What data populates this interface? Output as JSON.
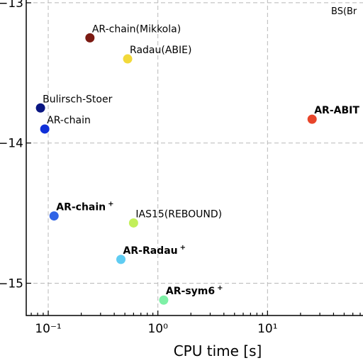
{
  "chart_data": {
    "type": "scatter",
    "title": "",
    "xlabel": "CPU time [s]",
    "ylabel": "",
    "x_scale": "log",
    "y_scale": "log",
    "xlim": [
      0.063,
      80
    ],
    "ylim": [
      -15.23,
      -12.97
    ],
    "x_ticks": [
      {
        "value": 0.1,
        "label": "10⁻¹"
      },
      {
        "value": 1,
        "label": "10⁰"
      },
      {
        "value": 10,
        "label": "10¹"
      }
    ],
    "y_ticks": [
      {
        "value": -13,
        "label": "−13"
      },
      {
        "value": -14,
        "label": "−14"
      },
      {
        "value": -15,
        "label": "−15"
      }
    ],
    "grid": true,
    "corner_label": "BS(Br",
    "points": [
      {
        "label": "AR-chain(Mikkola)",
        "x": 0.24,
        "y": -13.25,
        "color": "#7b1a12",
        "bold": false,
        "sup": ""
      },
      {
        "label": "Radau(ABIE)",
        "x": 0.53,
        "y": -13.4,
        "color": "#f2d93a",
        "bold": false,
        "sup": ""
      },
      {
        "label": "Bulirsch-Stoer",
        "x": 0.085,
        "y": -13.75,
        "color": "#0a1682",
        "bold": false,
        "sup": ""
      },
      {
        "label": "AR-chain",
        "x": 0.093,
        "y": -13.9,
        "color": "#1030d8",
        "bold": false,
        "sup": ""
      },
      {
        "label": "AR-ABIT",
        "x": 25.5,
        "y": -13.83,
        "color": "#e8452a",
        "bold": true,
        "sup": ""
      },
      {
        "label": "AR-chain",
        "x": 0.113,
        "y": -14.52,
        "color": "#2f63e6",
        "bold": true,
        "sup": "+"
      },
      {
        "label": "IAS15(REBOUND)",
        "x": 0.6,
        "y": -14.57,
        "color": "#c2ef5a",
        "bold": false,
        "sup": ""
      },
      {
        "label": "AR-Radau",
        "x": 0.46,
        "y": -14.83,
        "color": "#5fccf2",
        "bold": true,
        "sup": "+"
      },
      {
        "label": "AR-sym6",
        "x": 1.13,
        "y": -15.12,
        "color": "#7ef0a6",
        "bold": true,
        "sup": "+"
      }
    ]
  }
}
